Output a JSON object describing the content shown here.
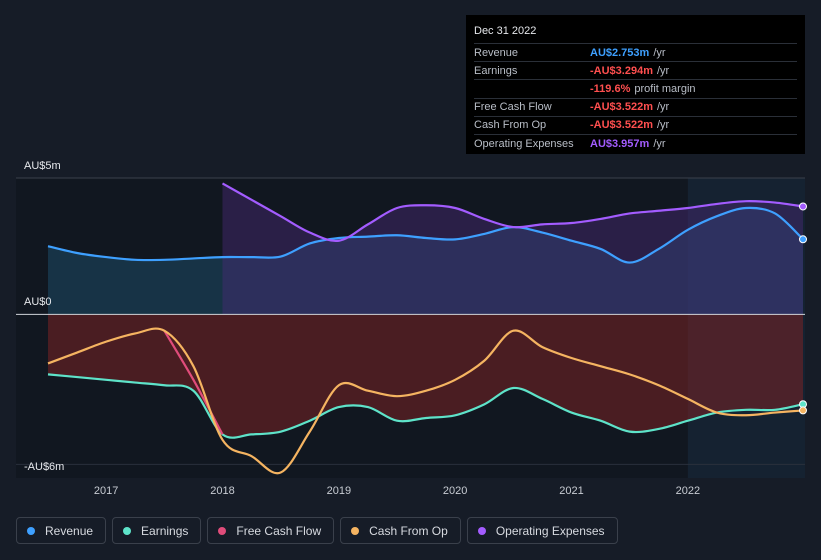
{
  "tooltip": {
    "date": "Dec 31 2022",
    "rows": [
      {
        "label": "Revenue",
        "value": "AU$2.753m",
        "unit": "/yr",
        "color": "#3ea0ff"
      },
      {
        "label": "Earnings",
        "value": "-AU$3.294m",
        "unit": "/yr",
        "color": "#ff4f4f"
      },
      {
        "label": "",
        "value": "-119.6%",
        "unit": "profit margin",
        "color": "#ff4f4f"
      },
      {
        "label": "Free Cash Flow",
        "value": "-AU$3.522m",
        "unit": "/yr",
        "color": "#ff4f4f"
      },
      {
        "label": "Cash From Op",
        "value": "-AU$3.522m",
        "unit": "/yr",
        "color": "#ff4f4f"
      },
      {
        "label": "Operating Expenses",
        "value": "AU$3.957m",
        "unit": "/yr",
        "color": "#a35cff"
      }
    ]
  },
  "chart_data": {
    "type": "line",
    "ylim": [
      -6,
      5
    ],
    "y_top_label": "AU$5m",
    "y_zero_label": "AU$0",
    "y_bottom_label": "-AU$6m",
    "x_ticks": [
      "2017",
      "2018",
      "2019",
      "2020",
      "2021",
      "2022"
    ],
    "x_tick_values": [
      2017,
      2018,
      2019,
      2020,
      2021,
      2022
    ],
    "x_range": [
      2016.5,
      2022.99
    ],
    "forecast_start": 2022.0,
    "series": [
      {
        "name": "Revenue",
        "color": "#3ea0ff",
        "x": [
          2016.5,
          2016.75,
          2017.0,
          2017.25,
          2017.5,
          2017.75,
          2018.0,
          2018.25,
          2018.5,
          2018.75,
          2019.0,
          2019.25,
          2019.5,
          2019.75,
          2020.0,
          2020.25,
          2020.5,
          2020.75,
          2021.0,
          2021.25,
          2021.5,
          2021.75,
          2022.0,
          2022.25,
          2022.5,
          2022.75,
          2022.99
        ],
        "values": [
          2.5,
          2.25,
          2.1,
          2.0,
          2.0,
          2.05,
          2.1,
          2.1,
          2.12,
          2.6,
          2.8,
          2.85,
          2.9,
          2.8,
          2.75,
          2.95,
          3.2,
          3.0,
          2.7,
          2.4,
          1.9,
          2.4,
          3.1,
          3.6,
          3.9,
          3.7,
          2.753
        ]
      },
      {
        "name": "Earnings",
        "color": "#5ee3c9",
        "x": [
          2016.5,
          2016.75,
          2017.0,
          2017.25,
          2017.5,
          2017.75,
          2018.0,
          2018.25,
          2018.5,
          2018.75,
          2019.0,
          2019.25,
          2019.5,
          2019.75,
          2020.0,
          2020.25,
          2020.5,
          2020.75,
          2021.0,
          2021.25,
          2021.5,
          2021.75,
          2022.0,
          2022.25,
          2022.5,
          2022.75,
          2022.99
        ],
        "values": [
          -2.2,
          -2.3,
          -2.4,
          -2.5,
          -2.6,
          -2.8,
          -4.4,
          -4.4,
          -4.3,
          -3.9,
          -3.4,
          -3.4,
          -3.9,
          -3.8,
          -3.7,
          -3.3,
          -2.7,
          -3.1,
          -3.6,
          -3.9,
          -4.3,
          -4.2,
          -3.9,
          -3.6,
          -3.5,
          -3.5,
          -3.294
        ]
      },
      {
        "name": "Free Cash Flow",
        "color": "#e04c7a",
        "x": [
          2017.5,
          2017.75,
          2018.0
        ],
        "values": [
          -0.6,
          -2.4,
          -4.4
        ]
      },
      {
        "name": "Cash From Op",
        "color": "#f5b461",
        "x": [
          2016.5,
          2016.75,
          2017.0,
          2017.25,
          2017.5,
          2017.75,
          2018.0,
          2018.25,
          2018.5,
          2018.75,
          2019.0,
          2019.25,
          2019.5,
          2019.75,
          2020.0,
          2020.25,
          2020.5,
          2020.75,
          2021.0,
          2021.25,
          2021.5,
          2021.75,
          2022.0,
          2022.25,
          2022.5,
          2022.75,
          2022.99
        ],
        "values": [
          -1.8,
          -1.4,
          -1.0,
          -0.7,
          -0.6,
          -1.9,
          -4.6,
          -5.2,
          -5.8,
          -4.3,
          -2.6,
          -2.8,
          -3.0,
          -2.8,
          -2.4,
          -1.7,
          -0.6,
          -1.2,
          -1.6,
          -1.9,
          -2.2,
          -2.6,
          -3.1,
          -3.6,
          -3.7,
          -3.6,
          -3.522
        ]
      },
      {
        "name": "Operating Expenses",
        "color": "#a35cff",
        "x": [
          2018.0,
          2018.25,
          2018.5,
          2018.75,
          2019.0,
          2019.25,
          2019.5,
          2019.75,
          2020.0,
          2020.25,
          2020.5,
          2020.75,
          2021.0,
          2021.25,
          2021.5,
          2021.75,
          2022.0,
          2022.25,
          2022.5,
          2022.75,
          2022.99
        ],
        "values": [
          4.8,
          4.2,
          3.6,
          3.0,
          2.7,
          3.3,
          3.9,
          4.0,
          3.9,
          3.5,
          3.2,
          3.3,
          3.35,
          3.5,
          3.7,
          3.8,
          3.9,
          4.05,
          4.15,
          4.1,
          3.957
        ]
      }
    ]
  },
  "legend": [
    {
      "label": "Revenue",
      "color": "#3ea0ff"
    },
    {
      "label": "Earnings",
      "color": "#5ee3c9"
    },
    {
      "label": "Free Cash Flow",
      "color": "#e04c7a"
    },
    {
      "label": "Cash From Op",
      "color": "#f5b461"
    },
    {
      "label": "Operating Expenses",
      "color": "#a35cff"
    }
  ]
}
